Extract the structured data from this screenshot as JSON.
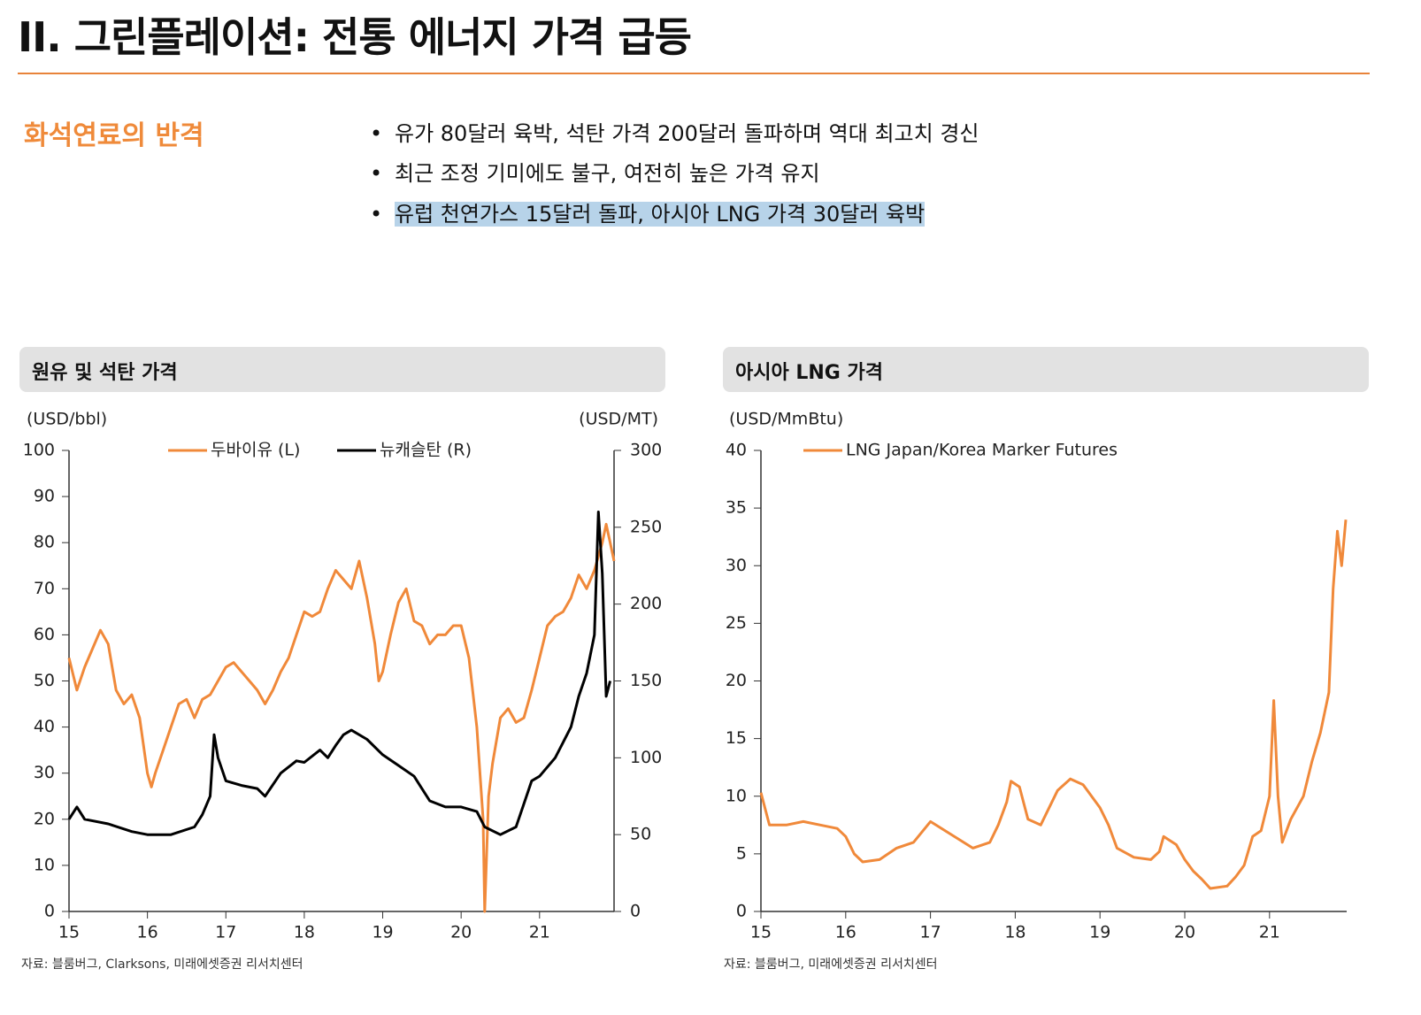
{
  "header": {
    "title": "II. 그린플레이션: 전통 에너지 가격 급등"
  },
  "section": {
    "label": "화석연료의 반격",
    "bullets": [
      "유가 80달러 육박, 석탄 가격 200달러 돌파하며 역대 최고치 경신",
      "최근 조정 기미에도 불구, 여전히 높은 가격 유지",
      "유럽 천연가스 15달러 돌파, 아시아 LNG 가격 30달러 육박"
    ]
  },
  "chart_data": [
    {
      "type": "line",
      "title": "원유 및 석탄 가격",
      "y_label": "(USD/bbl)",
      "y2_label": "(USD/MT)",
      "source": "자료: 블룸버그, Clarksons, 미래에셋증권 리서치센터",
      "xlim": [
        15,
        21.95
      ],
      "xticks": [
        15,
        16,
        17,
        18,
        19,
        20,
        21
      ],
      "ylim": [
        0,
        100
      ],
      "yticks": [
        0,
        10,
        20,
        30,
        40,
        50,
        60,
        70,
        80,
        90,
        100
      ],
      "y2lim": [
        0,
        300
      ],
      "y2ticks": [
        0,
        50,
        100,
        150,
        200,
        250,
        300
      ],
      "series": [
        {
          "name": "두바이유 (L)",
          "color": "#f0893a",
          "x": [
            15.0,
            15.1,
            15.2,
            15.3,
            15.4,
            15.5,
            15.6,
            15.7,
            15.8,
            15.9,
            16.0,
            16.05,
            16.1,
            16.2,
            16.3,
            16.4,
            16.5,
            16.6,
            16.7,
            16.8,
            16.9,
            17.0,
            17.1,
            17.2,
            17.3,
            17.4,
            17.5,
            17.6,
            17.7,
            17.8,
            17.9,
            18.0,
            18.1,
            18.2,
            18.3,
            18.4,
            18.5,
            18.6,
            18.7,
            18.8,
            18.9,
            18.95,
            19.0,
            19.1,
            19.2,
            19.3,
            19.4,
            19.5,
            19.6,
            19.7,
            19.8,
            19.9,
            20.0,
            20.1,
            20.2,
            20.28,
            20.3,
            20.35,
            20.4,
            20.5,
            20.6,
            20.7,
            20.8,
            20.9,
            21.0,
            21.1,
            21.2,
            21.3,
            21.4,
            21.5,
            21.6,
            21.7,
            21.8,
            21.85,
            21.9,
            21.95
          ],
          "values": [
            55,
            48,
            53,
            57,
            61,
            58,
            48,
            45,
            47,
            42,
            30,
            27,
            30,
            35,
            40,
            45,
            46,
            42,
            46,
            47,
            50,
            53,
            54,
            52,
            50,
            48,
            45,
            48,
            52,
            55,
            60,
            65,
            64,
            65,
            70,
            74,
            72,
            70,
            76,
            68,
            58,
            50,
            52,
            60,
            67,
            70,
            63,
            62,
            58,
            60,
            60,
            62,
            62,
            55,
            40,
            20,
            0,
            25,
            32,
            42,
            44,
            41,
            42,
            48,
            55,
            62,
            64,
            65,
            68,
            73,
            70,
            74,
            80,
            84,
            80,
            76
          ]
        },
        {
          "name": "뉴캐슬탄 (R)",
          "color": "#000000",
          "axis": "y2",
          "x": [
            15.0,
            15.1,
            15.2,
            15.5,
            15.8,
            16.0,
            16.3,
            16.6,
            16.7,
            16.8,
            16.85,
            16.9,
            17.0,
            17.2,
            17.4,
            17.5,
            17.7,
            17.9,
            18.0,
            18.2,
            18.3,
            18.4,
            18.5,
            18.6,
            18.8,
            19.0,
            19.2,
            19.4,
            19.5,
            19.6,
            19.8,
            20.0,
            20.2,
            20.3,
            20.5,
            20.7,
            20.8,
            20.9,
            21.0,
            21.2,
            21.4,
            21.5,
            21.6,
            21.7,
            21.75,
            21.8,
            21.85,
            21.9
          ],
          "values": [
            60,
            68,
            60,
            57,
            52,
            50,
            50,
            55,
            63,
            75,
            115,
            100,
            85,
            82,
            80,
            75,
            90,
            98,
            97,
            105,
            100,
            108,
            115,
            118,
            112,
            102,
            95,
            88,
            80,
            72,
            68,
            68,
            65,
            55,
            50,
            55,
            70,
            85,
            88,
            100,
            120,
            140,
            155,
            180,
            260,
            220,
            140,
            150
          ]
        }
      ]
    },
    {
      "type": "line",
      "title": "아시아 LNG  가격",
      "y_label": "(USD/MmBtu)",
      "source": "자료: 블룸버그, 미래에셋증권 리서치센터",
      "xlim": [
        15,
        21.91
      ],
      "xticks": [
        15,
        16,
        17,
        18,
        19,
        20,
        21
      ],
      "ylim": [
        0,
        40
      ],
      "yticks": [
        0,
        5,
        10,
        15,
        20,
        25,
        30,
        35,
        40
      ],
      "series": [
        {
          "name": "LNG Japan/Korea Marker Futures",
          "color": "#f0893a",
          "x": [
            15.0,
            15.1,
            15.3,
            15.5,
            15.7,
            15.9,
            16.0,
            16.1,
            16.2,
            16.4,
            16.6,
            16.8,
            17.0,
            17.5,
            17.7,
            17.8,
            17.9,
            17.95,
            18.05,
            18.15,
            18.3,
            18.4,
            18.5,
            18.65,
            18.8,
            19.0,
            19.1,
            19.2,
            19.4,
            19.6,
            19.7,
            19.75,
            19.9,
            20.0,
            20.1,
            20.2,
            20.3,
            20.5,
            20.6,
            20.7,
            20.8,
            20.9,
            21.0,
            21.05,
            21.1,
            21.15,
            21.25,
            21.4,
            21.5,
            21.6,
            21.7,
            21.75,
            21.8,
            21.85,
            21.9
          ],
          "values": [
            10.3,
            7.5,
            7.5,
            7.8,
            7.5,
            7.2,
            6.5,
            5.0,
            4.3,
            4.5,
            5.5,
            6.0,
            7.8,
            5.5,
            6.0,
            7.5,
            9.5,
            11.3,
            10.8,
            8.0,
            7.5,
            9.0,
            10.5,
            11.5,
            11.0,
            9.0,
            7.5,
            5.5,
            4.7,
            4.5,
            5.2,
            6.5,
            5.8,
            4.5,
            3.5,
            2.8,
            2.0,
            2.2,
            3.0,
            4.0,
            6.5,
            7.0,
            10.0,
            18.3,
            10.0,
            6.0,
            8.0,
            10.0,
            13.0,
            15.5,
            19.0,
            28.0,
            33.0,
            30.0,
            34.0
          ]
        }
      ]
    }
  ]
}
